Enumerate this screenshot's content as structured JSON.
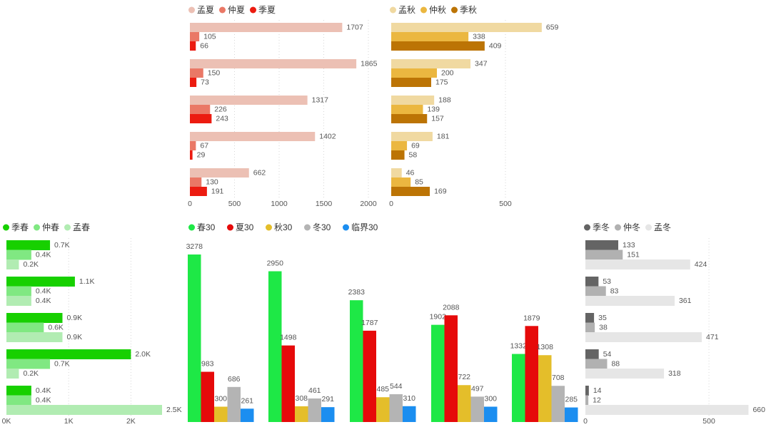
{
  "chart_data": [
    {
      "id": "summer",
      "type": "bar",
      "orientation": "horizontal",
      "legend_position": "top-left",
      "grid": true,
      "xlim": [
        0,
        2000
      ],
      "ticks": [
        0,
        500,
        1000,
        1500,
        2000
      ],
      "tick_labels": [
        "0",
        "500",
        "1000",
        "1500",
        "2000"
      ],
      "categories": [
        "",
        "",
        "",
        "",
        ""
      ],
      "series": [
        {
          "name": "孟夏",
          "color": "#ecc0b4",
          "values": [
            1707,
            1865,
            1317,
            1402,
            662
          ]
        },
        {
          "name": "仲夏",
          "color": "#ea7866",
          "values": [
            105,
            150,
            226,
            67,
            130
          ]
        },
        {
          "name": "季夏",
          "color": "#ec1b10",
          "values": [
            66,
            73,
            243,
            29,
            191
          ]
        }
      ],
      "data_labels": [
        [
          "1707",
          "1865",
          "1317",
          "1402",
          "662"
        ],
        [
          "105",
          "150",
          "226",
          "67",
          "130"
        ],
        [
          "66",
          "73",
          "243",
          "29",
          "191"
        ]
      ]
    },
    {
      "id": "autumn",
      "type": "bar",
      "orientation": "horizontal",
      "legend_position": "top-left",
      "grid": true,
      "xlim": [
        0,
        800
      ],
      "ticks": [
        0,
        500
      ],
      "tick_labels": [
        "0",
        "500"
      ],
      "categories": [
        "",
        "",
        "",
        "",
        ""
      ],
      "series": [
        {
          "name": "孟秋",
          "color": "#f0d9a1",
          "values": [
            659,
            347,
            188,
            181,
            46
          ]
        },
        {
          "name": "仲秋",
          "color": "#ebb740",
          "values": [
            338,
            200,
            139,
            69,
            85
          ]
        },
        {
          "name": "季秋",
          "color": "#bc7405",
          "values": [
            409,
            175,
            157,
            58,
            169
          ]
        }
      ],
      "data_labels": [
        [
          "659",
          "347",
          "188",
          "181",
          "46"
        ],
        [
          "338",
          "200",
          "139",
          "69",
          "85"
        ],
        [
          "409",
          "175",
          "157",
          "58",
          "169"
        ]
      ]
    },
    {
      "id": "spring",
      "type": "bar",
      "orientation": "horizontal",
      "legend_position": "top-left",
      "grid": true,
      "xlim": [
        0,
        2500
      ],
      "ticks": [
        0,
        1000,
        2000
      ],
      "tick_labels": [
        "0K",
        "1K",
        "2K"
      ],
      "categories": [
        "",
        "",
        "",
        "",
        ""
      ],
      "series": [
        {
          "name": "季春",
          "color": "#17d000",
          "values": [
            700,
            1100,
            900,
            2000,
            400
          ]
        },
        {
          "name": "仲春",
          "color": "#80e882",
          "values": [
            400,
            400,
            600,
            700,
            400
          ]
        },
        {
          "name": "孟春",
          "color": "#b1ecb2",
          "values": [
            200,
            400,
            900,
            200,
            2500
          ]
        }
      ],
      "data_labels": [
        [
          "0.7K",
          "1.1K",
          "0.9K",
          "2.0K",
          "0.4K"
        ],
        [
          "0.4K",
          "0.4K",
          "0.6K",
          "0.7K",
          "0.4K"
        ],
        [
          "0.2K",
          "0.4K",
          "0.9K",
          "0.2K",
          "2.5K"
        ]
      ]
    },
    {
      "id": "season30",
      "type": "bar",
      "orientation": "vertical",
      "legend_position": "top-left",
      "grid": false,
      "ylim": [
        0,
        3400
      ],
      "categories": [
        "",
        "",
        "",
        "",
        ""
      ],
      "series": [
        {
          "name": "春30",
          "color": "#1ee846",
          "values": [
            3278,
            2950,
            2383,
            1902,
            1332
          ]
        },
        {
          "name": "夏30",
          "color": "#e60a0a",
          "values": [
            983,
            1498,
            1787,
            2088,
            1879
          ]
        },
        {
          "name": "秋30",
          "color": "#e4be2a",
          "values": [
            300,
            308,
            485,
            722,
            1308
          ]
        },
        {
          "name": "冬30",
          "color": "#b4b4b4",
          "values": [
            686,
            461,
            544,
            497,
            708
          ]
        },
        {
          "name": "临界30",
          "color": "#1b8ef0",
          "values": [
            261,
            291,
            310,
            300,
            285
          ]
        }
      ]
    },
    {
      "id": "winter",
      "type": "bar",
      "orientation": "horizontal",
      "legend_position": "top-left",
      "grid": true,
      "xlim": [
        0,
        650
      ],
      "ticks": [
        0,
        500
      ],
      "tick_labels": [
        "0",
        "500"
      ],
      "categories": [
        "",
        "",
        "",
        "",
        ""
      ],
      "series": [
        {
          "name": "季冬",
          "color": "#646464",
          "values": [
            133,
            53,
            35,
            54,
            14
          ]
        },
        {
          "name": "仲冬",
          "color": "#b1b1b1",
          "values": [
            151,
            83,
            38,
            88,
            12
          ]
        },
        {
          "name": "孟冬",
          "color": "#e6e6e6",
          "values": [
            424,
            361,
            471,
            318,
            660
          ]
        }
      ],
      "data_labels": [
        [
          "133",
          "53",
          "35",
          "54",
          "14"
        ],
        [
          "151",
          "83",
          "38",
          "88",
          "12"
        ],
        [
          "424",
          "361",
          "471",
          "318",
          "660"
        ]
      ]
    }
  ]
}
